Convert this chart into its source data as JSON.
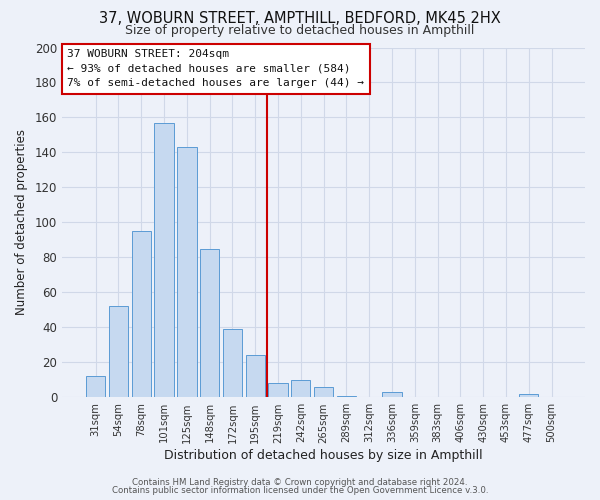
{
  "title1": "37, WOBURN STREET, AMPTHILL, BEDFORD, MK45 2HX",
  "title2": "Size of property relative to detached houses in Ampthill",
  "xlabel": "Distribution of detached houses by size in Ampthill",
  "ylabel": "Number of detached properties",
  "bar_labels": [
    "31sqm",
    "54sqm",
    "78sqm",
    "101sqm",
    "125sqm",
    "148sqm",
    "172sqm",
    "195sqm",
    "219sqm",
    "242sqm",
    "265sqm",
    "289sqm",
    "312sqm",
    "336sqm",
    "359sqm",
    "383sqm",
    "406sqm",
    "430sqm",
    "453sqm",
    "477sqm",
    "500sqm"
  ],
  "bar_values": [
    12,
    52,
    95,
    157,
    143,
    85,
    39,
    24,
    8,
    10,
    6,
    1,
    0,
    3,
    0,
    0,
    0,
    0,
    0,
    2,
    0
  ],
  "bar_color": "#c6d9f0",
  "bar_edge_color": "#5b9bd5",
  "vline_x": 7.5,
  "vline_color": "#cc0000",
  "annotation_line1": "37 WOBURN STREET: 204sqm",
  "annotation_line2": "← 93% of detached houses are smaller (584)",
  "annotation_line3": "7% of semi-detached houses are larger (44) →",
  "annotation_box_facecolor": "#ffffff",
  "annotation_box_edgecolor": "#cc0000",
  "footer1": "Contains HM Land Registry data © Crown copyright and database right 2024.",
  "footer2": "Contains public sector information licensed under the Open Government Licence v.3.0.",
  "ylim": [
    0,
    200
  ],
  "yticks": [
    0,
    20,
    40,
    60,
    80,
    100,
    120,
    140,
    160,
    180,
    200
  ],
  "grid_color": "#d0d8e8",
  "background_color": "#edf1f9"
}
